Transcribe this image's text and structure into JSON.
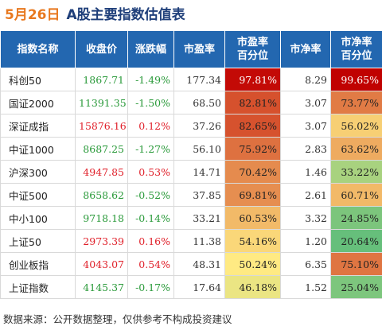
{
  "header": {
    "date": "5月26日",
    "title": "A股主要指数估值表"
  },
  "table": {
    "columns": [
      "指数名称",
      "收盘价",
      "涨跌幅",
      "市盈率",
      "市盈率\n百分位",
      "市净率",
      "市净率\n百分位"
    ],
    "rows": [
      [
        "科创50",
        "1867.71",
        "-1.49%",
        "177.34",
        "97.81%",
        "8.29",
        "99.65%"
      ],
      [
        "国证2000",
        "11391.35",
        "-1.50%",
        "68.50",
        "82.81%",
        "3.07",
        "73.77%"
      ],
      [
        "深证成指",
        "15876.16",
        "0.12%",
        "37.26",
        "82.65%",
        "3.07",
        "56.02%"
      ],
      [
        "中证1000",
        "8687.25",
        "-1.27%",
        "56.10",
        "75.92%",
        "2.83",
        "63.62%"
      ],
      [
        "沪深300",
        "4947.85",
        "0.53%",
        "14.71",
        "70.42%",
        "1.46",
        "33.22%"
      ],
      [
        "中证500",
        "8658.62",
        "-0.52%",
        "37.85",
        "69.81%",
        "2.61",
        "60.71%"
      ],
      [
        "中小100",
        "9718.18",
        "-0.14%",
        "33.21",
        "60.53%",
        "3.32",
        "24.85%"
      ],
      [
        "上证50",
        "2973.39",
        "0.16%",
        "11.38",
        "54.16%",
        "1.20",
        "20.64%"
      ],
      [
        "创业板指",
        "4043.07",
        "0.54%",
        "48.31",
        "50.24%",
        "6.35",
        "75.10%"
      ],
      [
        "上证指数",
        "4145.37",
        "-0.17%",
        "17.64",
        "46.18%",
        "1.52",
        "25.04%"
      ]
    ]
  },
  "footer": "数据来源：公开数据整理，仅供参考不构成投资建议"
}
